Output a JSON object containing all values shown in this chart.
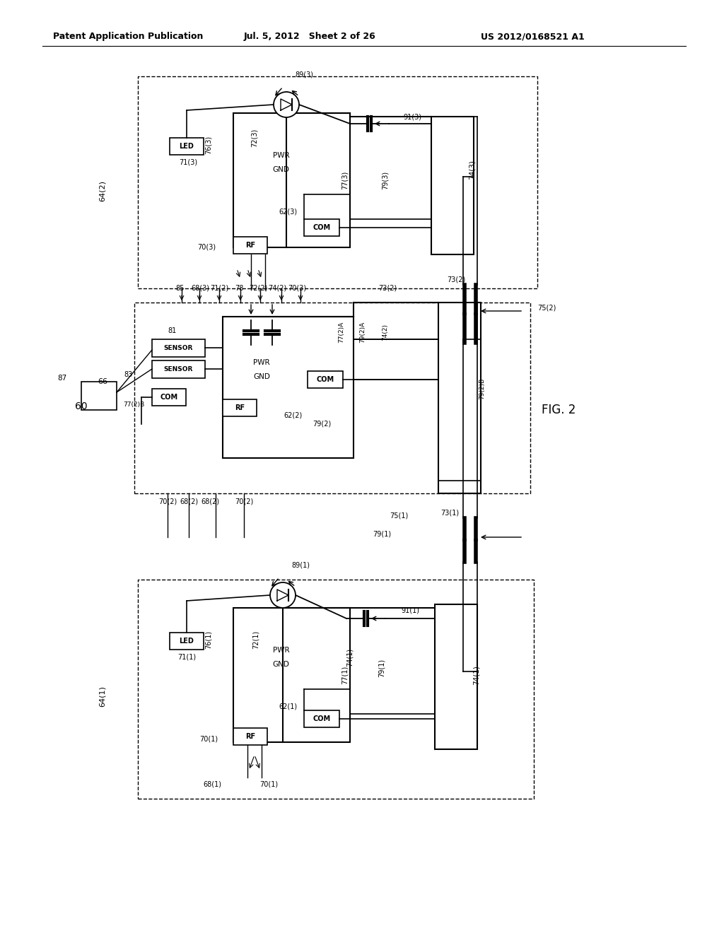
{
  "title_left": "Patent Application Publication",
  "title_mid": "Jul. 5, 2012   Sheet 2 of 26",
  "title_right": "US 2012/0168521 A1",
  "fig_label": "FIG. 2",
  "background": "#ffffff"
}
